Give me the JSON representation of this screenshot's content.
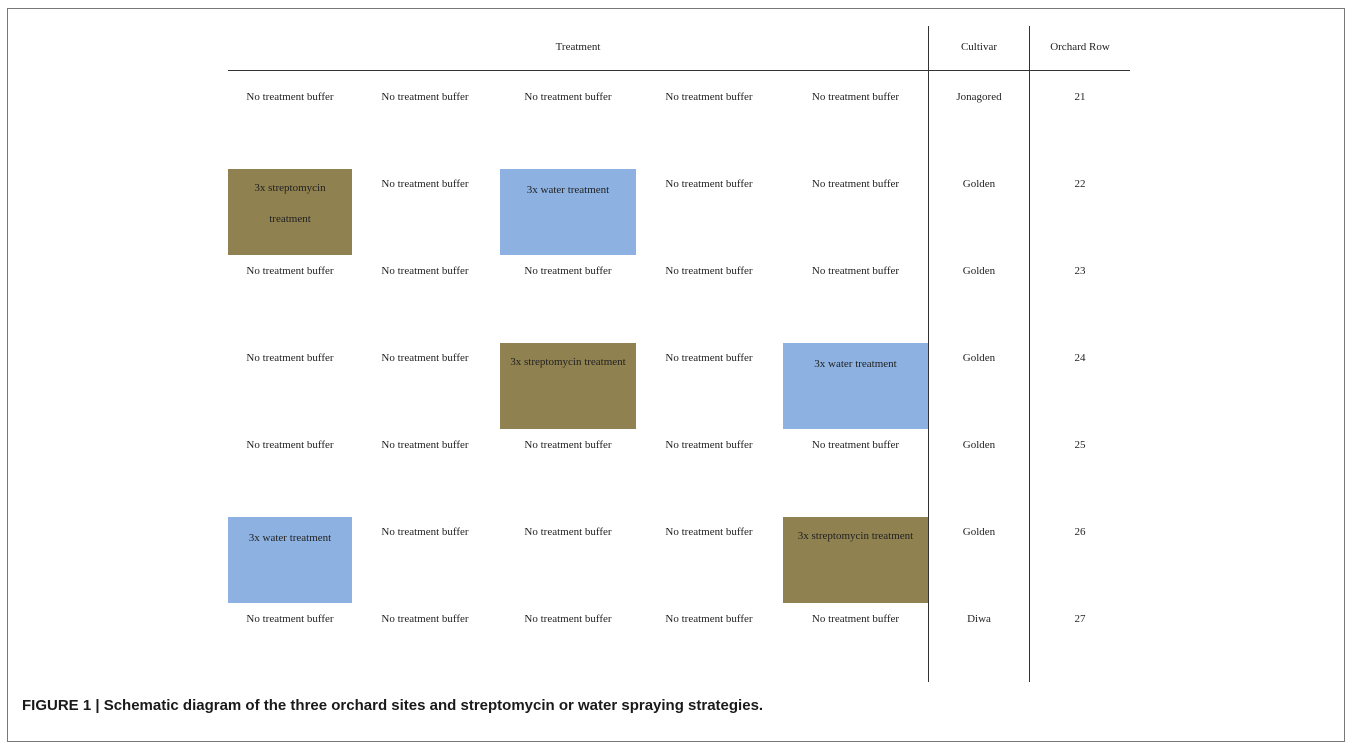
{
  "headers": {
    "treatment": "Treatment",
    "cultivar": "Cultivar",
    "orchard_row": "Orchard Row"
  },
  "rows": [
    {
      "cells": [
        {
          "text": "No treatment buffer",
          "type": "none"
        },
        {
          "text": "No treatment buffer",
          "type": "none"
        },
        {
          "text": "No treatment buffer",
          "type": "none"
        },
        {
          "text": "No treatment buffer",
          "type": "none"
        },
        {
          "text": "No treatment buffer",
          "type": "none"
        }
      ],
      "cultivar": "Jonagored",
      "row": "21"
    },
    {
      "cells": [
        {
          "text": "3x streptomycin treatment",
          "type": "streptomycin"
        },
        {
          "text": "No treatment buffer",
          "type": "none"
        },
        {
          "text": "3x water treatment",
          "type": "water"
        },
        {
          "text": "No treatment buffer",
          "type": "none"
        },
        {
          "text": "No treatment buffer",
          "type": "none"
        }
      ],
      "cultivar": "Golden",
      "row": "22"
    },
    {
      "cells": [
        {
          "text": "No treatment buffer",
          "type": "none"
        },
        {
          "text": "No treatment buffer",
          "type": "none"
        },
        {
          "text": "No treatment buffer",
          "type": "none"
        },
        {
          "text": "No treatment buffer",
          "type": "none"
        },
        {
          "text": "No treatment buffer",
          "type": "none"
        }
      ],
      "cultivar": "Golden",
      "row": "23"
    },
    {
      "cells": [
        {
          "text": "No treatment buffer",
          "type": "none"
        },
        {
          "text": "No treatment buffer",
          "type": "none"
        },
        {
          "text": "3x streptomycin treatment",
          "type": "streptomycin"
        },
        {
          "text": "No treatment buffer",
          "type": "none"
        },
        {
          "text": "3x water treatment",
          "type": "water"
        }
      ],
      "cultivar": "Golden",
      "row": "24"
    },
    {
      "cells": [
        {
          "text": "No treatment buffer",
          "type": "none"
        },
        {
          "text": "No treatment buffer",
          "type": "none"
        },
        {
          "text": "No treatment buffer",
          "type": "none"
        },
        {
          "text": "No treatment buffer",
          "type": "none"
        },
        {
          "text": "No treatment buffer",
          "type": "none"
        }
      ],
      "cultivar": "Golden",
      "row": "25"
    },
    {
      "cells": [
        {
          "text": "3x water treatment",
          "type": "water"
        },
        {
          "text": "No treatment buffer",
          "type": "none"
        },
        {
          "text": "No treatment buffer",
          "type": "none"
        },
        {
          "text": "No treatment buffer",
          "type": "none"
        },
        {
          "text": "3x streptomycin treatment",
          "type": "streptomycin"
        }
      ],
      "cultivar": "Golden",
      "row": "26"
    },
    {
      "cells": [
        {
          "text": "No treatment buffer",
          "type": "none"
        },
        {
          "text": "No treatment buffer",
          "type": "none"
        },
        {
          "text": "No treatment buffer",
          "type": "none"
        },
        {
          "text": "No treatment buffer",
          "type": "none"
        },
        {
          "text": "No treatment buffer",
          "type": "none"
        }
      ],
      "cultivar": "Diwa",
      "row": "27"
    }
  ],
  "colors": {
    "streptomycin": "#8f8150",
    "water": "#8db2e2"
  },
  "caption": "FIGURE 1 | Schematic diagram of the three orchard sites and streptomycin or water spraying strategies."
}
